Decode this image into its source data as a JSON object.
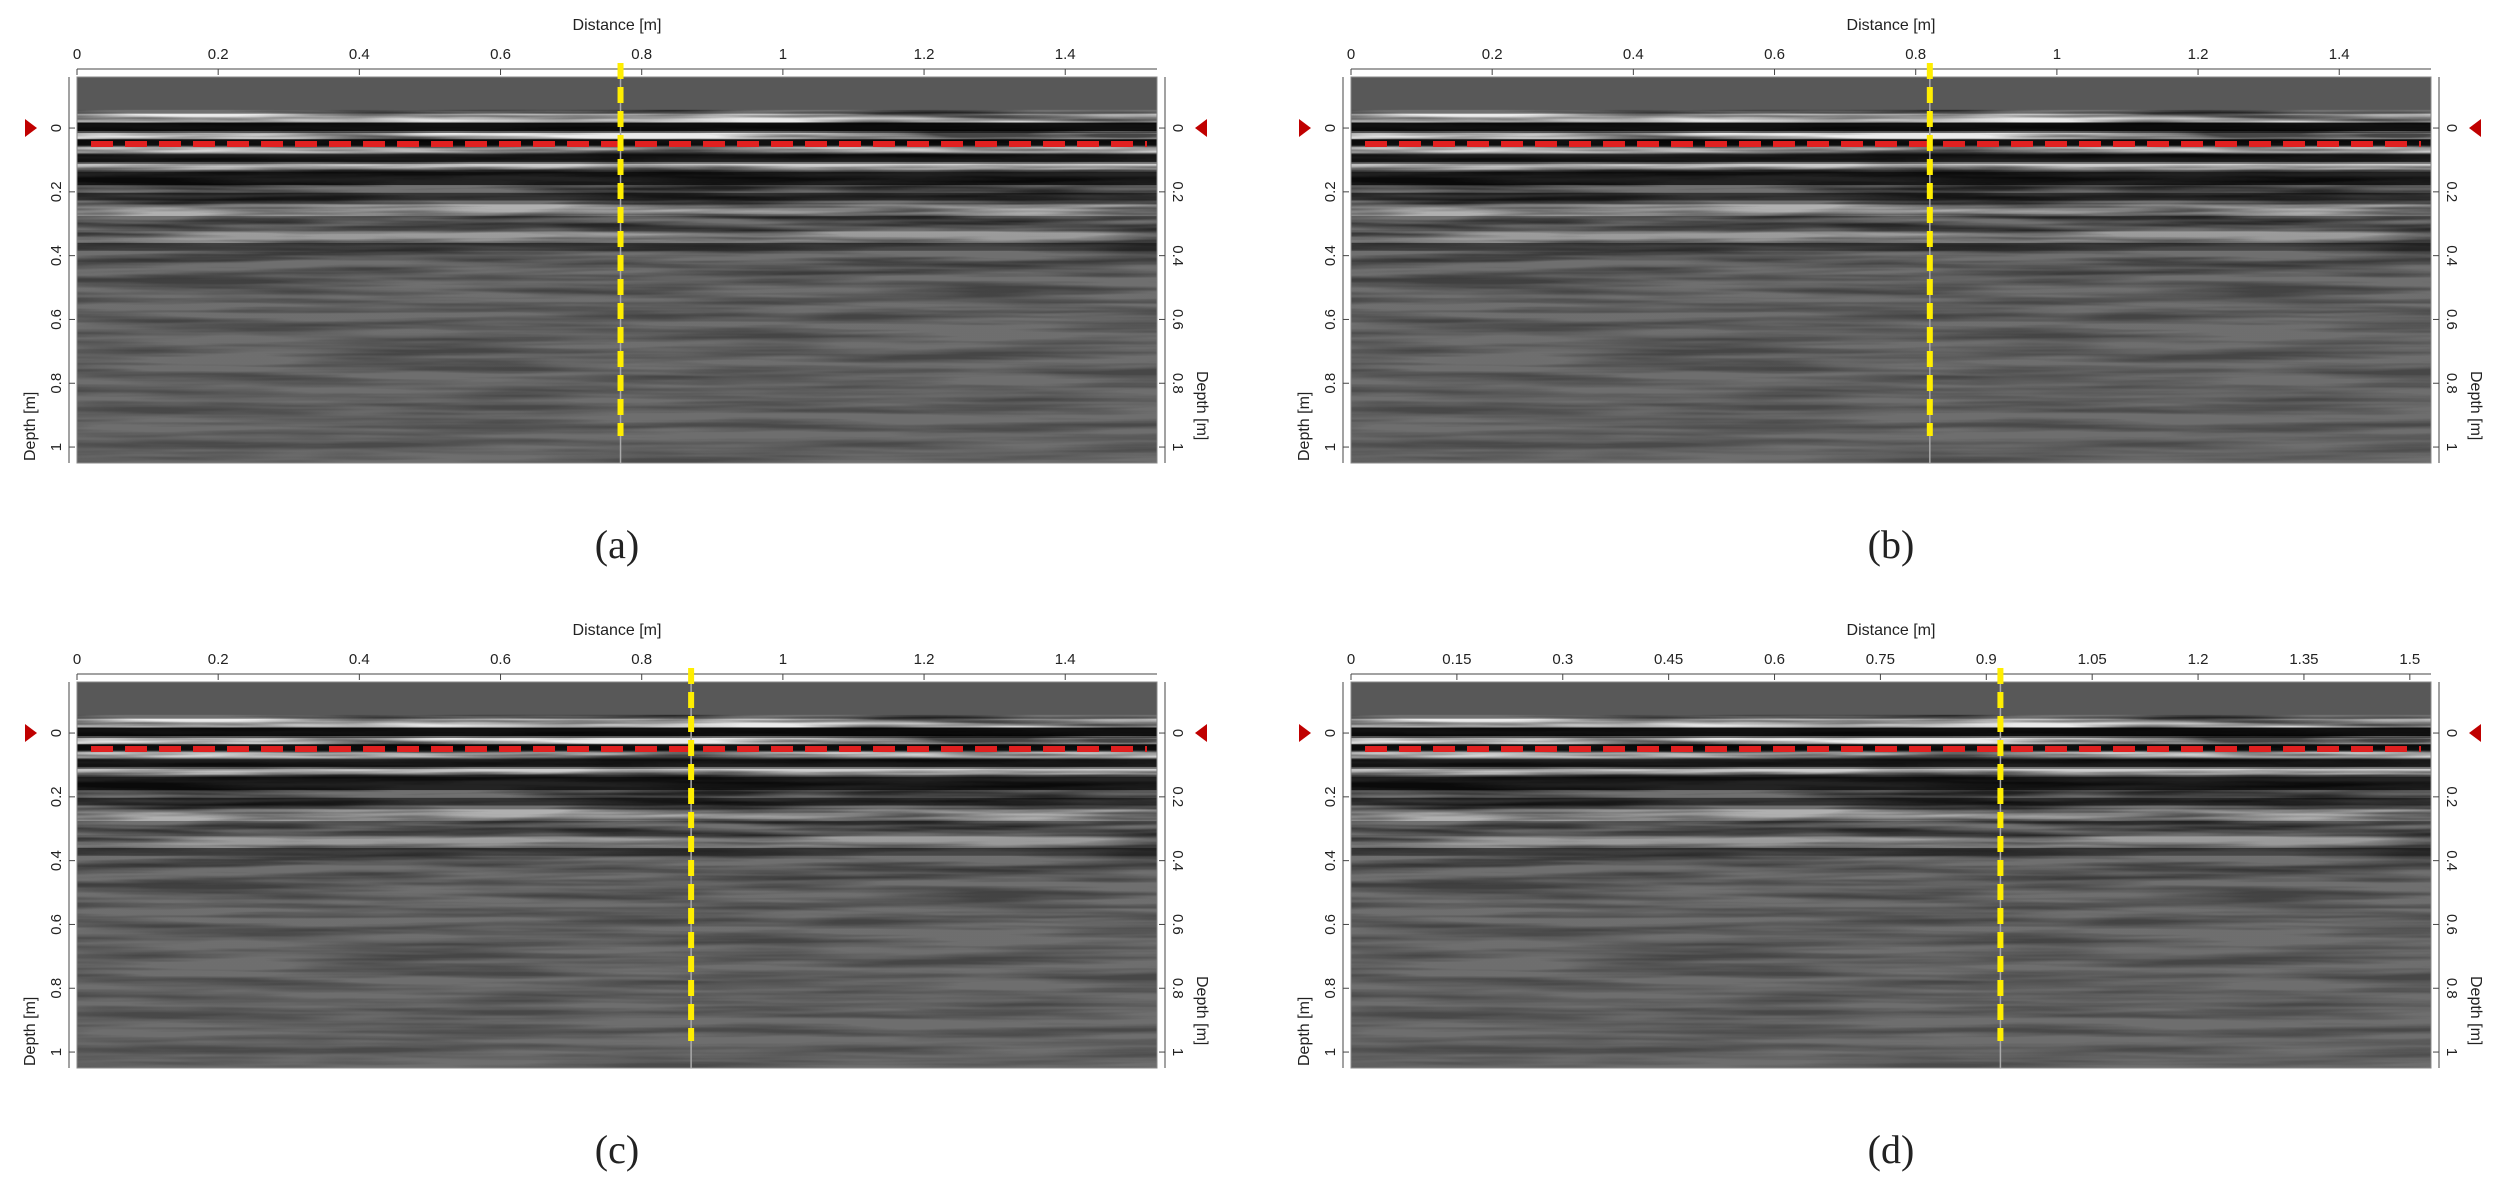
{
  "chart_data": [
    {
      "type": "radargram",
      "title": "Distance [m]",
      "ylabel": "Depth [m]",
      "caption": "(a)",
      "xlim": [
        0,
        1.53
      ],
      "xticks": [
        0,
        0.2,
        0.4,
        0.6,
        0.8,
        1,
        1.2,
        1.4
      ],
      "ylim": [
        -0.16,
        1.05
      ],
      "yticks": [
        0,
        0.2,
        0.4,
        0.6,
        0.8,
        1
      ],
      "vertical_line": 0.77,
      "horizontal_line": 0.05,
      "marker_depth": 0
    },
    {
      "type": "radargram",
      "title": "Distance [m]",
      "ylabel": "Depth [m]",
      "caption": "(b)",
      "xlim": [
        0,
        1.53
      ],
      "xticks": [
        0,
        0.2,
        0.4,
        0.6,
        0.8,
        1,
        1.2,
        1.4
      ],
      "ylim": [
        -0.16,
        1.05
      ],
      "yticks": [
        0,
        0.2,
        0.4,
        0.6,
        0.8,
        1
      ],
      "vertical_line": 0.82,
      "horizontal_line": 0.05,
      "marker_depth": 0
    },
    {
      "type": "radargram",
      "title": "Distance [m]",
      "ylabel": "Depth [m]",
      "caption": "(c)",
      "xlim": [
        0,
        1.53
      ],
      "xticks": [
        0,
        0.2,
        0.4,
        0.6,
        0.8,
        1,
        1.2,
        1.4
      ],
      "ylim": [
        -0.16,
        1.05
      ],
      "yticks": [
        0,
        0.2,
        0.4,
        0.6,
        0.8,
        1
      ],
      "vertical_line": 0.87,
      "horizontal_line": 0.05,
      "marker_depth": 0
    },
    {
      "type": "radargram",
      "title": "Distance [m]",
      "ylabel": "Depth [m]",
      "caption": "(d)",
      "xlim": [
        0,
        1.53
      ],
      "xticks": [
        0,
        0.15,
        0.3,
        0.45,
        0.6,
        0.75,
        0.9,
        1.05,
        1.2,
        1.35,
        1.5
      ],
      "ylim": [
        -0.16,
        1.05
      ],
      "yticks": [
        0,
        0.2,
        0.4,
        0.6,
        0.8,
        1
      ],
      "vertical_line": 0.92,
      "horizontal_line": 0.05,
      "marker_depth": 0
    }
  ]
}
